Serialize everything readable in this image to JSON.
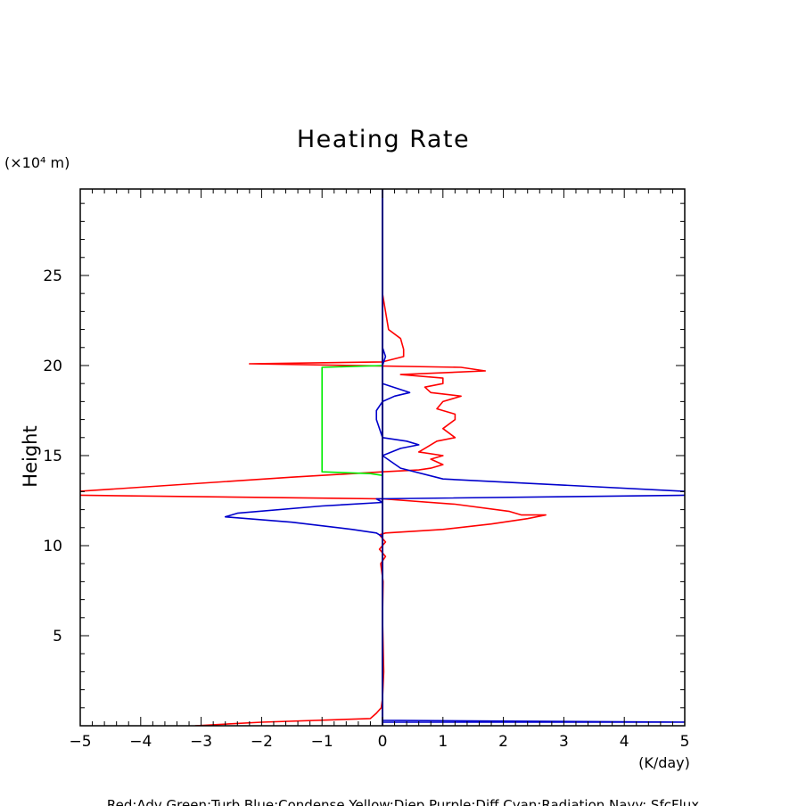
{
  "chart_data": {
    "type": "line",
    "title": "Heating Rate",
    "ylabel": "Height",
    "yunit": "(×10⁴ m)",
    "xunit": "(K/day)",
    "xlim": [
      -5,
      5
    ],
    "ylim": [
      0,
      29.8
    ],
    "xticks": [
      -5,
      -4,
      -3,
      -2,
      -1,
      0,
      1,
      2,
      3,
      4,
      5
    ],
    "yticks": [
      5,
      10,
      15,
      20,
      25
    ],
    "grid": false,
    "legend_text": "Red:Adv  Green:Turb  Blue:Condense  Yellow:Diep  Purple:Diff  Cyan:Radiation  Navy: SfcFlux",
    "colors": {
      "red": "#ff0000",
      "green": "#00ee00",
      "blue": "#0000cc",
      "navy": "#000080"
    },
    "series": [
      {
        "color": "#ff0000",
        "points": [
          [
            -3.1,
            0.0
          ],
          [
            -2.0,
            0.2
          ],
          [
            -0.2,
            0.4
          ],
          [
            -0.1,
            0.7
          ],
          [
            -0.02,
            1.0
          ],
          [
            0.0,
            1.5
          ],
          [
            0.02,
            3.0
          ],
          [
            0.0,
            6.0
          ],
          [
            0.01,
            8.0
          ],
          [
            -0.03,
            9.0
          ],
          [
            0.05,
            9.4
          ],
          [
            -0.05,
            9.8
          ],
          [
            0.05,
            10.2
          ],
          [
            -0.05,
            10.6
          ],
          [
            0.05,
            10.7
          ],
          [
            0.05,
            10.7
          ],
          [
            1.0,
            10.9
          ],
          [
            1.8,
            11.2
          ],
          [
            2.4,
            11.5
          ],
          [
            2.7,
            11.7
          ],
          [
            2.3,
            11.7
          ],
          [
            2.1,
            11.9
          ],
          [
            1.2,
            12.3
          ],
          [
            0.0,
            12.6
          ],
          [
            -5.1,
            12.8
          ],
          [
            -5.1,
            13.0
          ],
          [
            -1.5,
            13.8
          ],
          [
            0.0,
            14.1
          ],
          [
            0.6,
            14.2
          ],
          [
            0.8,
            14.3
          ],
          [
            1.0,
            14.5
          ],
          [
            0.8,
            14.8
          ],
          [
            1.0,
            15.0
          ],
          [
            0.6,
            15.2
          ],
          [
            0.7,
            15.4
          ],
          [
            0.9,
            15.8
          ],
          [
            1.2,
            16.0
          ],
          [
            1.0,
            16.5
          ],
          [
            1.2,
            17.0
          ],
          [
            1.2,
            17.3
          ],
          [
            0.9,
            17.6
          ],
          [
            1.0,
            18.0
          ],
          [
            1.3,
            18.3
          ],
          [
            0.8,
            18.5
          ],
          [
            0.7,
            18.8
          ],
          [
            1.0,
            19.0
          ],
          [
            1.0,
            19.3
          ],
          [
            0.3,
            19.5
          ],
          [
            1.7,
            19.7
          ],
          [
            1.3,
            19.9
          ],
          [
            -2.2,
            20.1
          ],
          [
            0.0,
            20.2
          ],
          [
            0.35,
            20.5
          ],
          [
            0.35,
            20.9
          ],
          [
            0.3,
            21.5
          ],
          [
            0.1,
            22.0
          ],
          [
            0.05,
            23.0
          ],
          [
            0.0,
            24.0
          ],
          [
            0.0,
            27.5
          ]
        ]
      },
      {
        "color": "#00ee00",
        "points": [
          [
            0.0,
            13.9
          ],
          [
            -0.2,
            14.0
          ],
          [
            -1.0,
            14.1
          ],
          [
            -1.0,
            19.9
          ],
          [
            0.0,
            20.0
          ]
        ]
      },
      {
        "color": "#0000cc",
        "points": [
          [
            0.0,
            0.2
          ],
          [
            5.1,
            0.2
          ],
          [
            0.0,
            0.3
          ],
          [
            0.0,
            10.5
          ],
          [
            -0.1,
            10.7
          ],
          [
            -0.5,
            10.9
          ],
          [
            -1.5,
            11.3
          ],
          [
            -2.6,
            11.6
          ],
          [
            -2.4,
            11.8
          ],
          [
            -1.0,
            12.2
          ],
          [
            0.0,
            12.4
          ],
          [
            -0.1,
            12.6
          ],
          [
            5.1,
            12.8
          ],
          [
            5.1,
            13.0
          ],
          [
            1.0,
            13.7
          ],
          [
            0.3,
            14.3
          ],
          [
            0.0,
            15.0
          ],
          [
            0.3,
            15.4
          ],
          [
            0.6,
            15.6
          ],
          [
            0.4,
            15.8
          ],
          [
            0.0,
            16.0
          ],
          [
            -0.1,
            17.0
          ],
          [
            -0.1,
            17.5
          ],
          [
            0.0,
            18.0
          ],
          [
            0.2,
            18.3
          ],
          [
            0.45,
            18.5
          ],
          [
            0.0,
            19.0
          ],
          [
            0.0,
            20.0
          ],
          [
            0.05,
            20.5
          ],
          [
            0.0,
            21.0
          ],
          [
            0.0,
            29.8
          ]
        ]
      },
      {
        "color": "#000080",
        "points": [
          [
            0.0,
            0.0
          ],
          [
            0.0,
            29.8
          ]
        ]
      }
    ]
  }
}
